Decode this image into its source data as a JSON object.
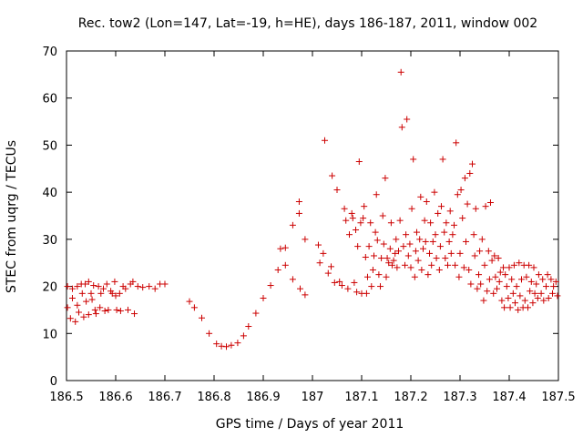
{
  "chart_data": {
    "type": "scatter",
    "title": "Rec. tow2 (Lon=147, Lat=-19, h=HE), days 186-187, 2011, window 002",
    "xlabel": "GPS time / Days of year 2011",
    "ylabel": "STEC from uqrg / TECUs",
    "xlim": [
      186.5,
      187.5
    ],
    "ylim": [
      0,
      70
    ],
    "xticks": [
      "186.5",
      "186.6",
      "186.7",
      "186.8",
      "186.9",
      "187",
      "187.1",
      "187.2",
      "187.3",
      "187.4",
      "187.5"
    ],
    "yticks": [
      "0",
      "10",
      "20",
      "30",
      "40",
      "50",
      "60",
      "70"
    ],
    "grid": false,
    "legend": "none",
    "marker": "+",
    "color": "#cc0000",
    "points": [
      [
        186.502,
        20.0
      ],
      [
        186.502,
        15.5
      ],
      [
        186.508,
        13.2
      ],
      [
        186.512,
        19.5
      ],
      [
        186.512,
        17.5
      ],
      [
        186.518,
        12.5
      ],
      [
        186.522,
        20.0
      ],
      [
        186.522,
        16.0
      ],
      [
        186.525,
        14.5
      ],
      [
        186.53,
        20.5
      ],
      [
        186.532,
        18.5
      ],
      [
        186.535,
        13.5
      ],
      [
        186.538,
        20.5
      ],
      [
        186.54,
        16.8
      ],
      [
        186.545,
        21.0
      ],
      [
        186.545,
        14.0
      ],
      [
        186.55,
        18.5
      ],
      [
        186.552,
        17.2
      ],
      [
        186.555,
        20.2
      ],
      [
        186.558,
        15.0
      ],
      [
        186.56,
        14.2
      ],
      [
        186.565,
        20.0
      ],
      [
        186.568,
        15.5
      ],
      [
        186.57,
        18.5
      ],
      [
        186.575,
        19.5
      ],
      [
        186.578,
        14.8
      ],
      [
        186.582,
        20.5
      ],
      [
        186.585,
        15.0
      ],
      [
        186.59,
        19.0
      ],
      [
        186.593,
        18.5
      ],
      [
        186.598,
        21.0
      ],
      [
        186.6,
        18.0
      ],
      [
        186.602,
        15.0
      ],
      [
        186.608,
        18.5
      ],
      [
        186.61,
        14.8
      ],
      [
        186.615,
        20.0
      ],
      [
        186.62,
        19.5
      ],
      [
        186.625,
        15.0
      ],
      [
        186.63,
        20.5
      ],
      [
        186.635,
        21.0
      ],
      [
        186.638,
        14.2
      ],
      [
        186.645,
        20.0
      ],
      [
        186.655,
        19.8
      ],
      [
        186.668,
        20.0
      ],
      [
        186.68,
        19.5
      ],
      [
        186.69,
        20.5
      ],
      [
        186.7,
        20.5
      ],
      [
        186.75,
        16.8
      ],
      [
        186.76,
        15.5
      ],
      [
        186.775,
        13.3
      ],
      [
        186.79,
        10.0
      ],
      [
        186.805,
        7.8
      ],
      [
        186.815,
        7.3
      ],
      [
        186.825,
        7.2
      ],
      [
        186.835,
        7.5
      ],
      [
        186.848,
        8.0
      ],
      [
        186.86,
        9.5
      ],
      [
        186.87,
        11.5
      ],
      [
        186.885,
        14.3
      ],
      [
        186.9,
        17.5
      ],
      [
        186.915,
        20.2
      ],
      [
        186.93,
        23.5
      ],
      [
        186.935,
        28.0
      ],
      [
        186.945,
        28.2
      ],
      [
        186.945,
        24.5
      ],
      [
        186.96,
        21.5
      ],
      [
        186.96,
        33.0
      ],
      [
        186.973,
        35.5
      ],
      [
        186.973,
        38.0
      ],
      [
        186.975,
        19.5
      ],
      [
        186.985,
        18.2
      ],
      [
        186.985,
        30.0
      ],
      [
        187.012,
        28.8
      ],
      [
        187.015,
        25.0
      ],
      [
        187.022,
        27.0
      ],
      [
        187.025,
        51.0
      ],
      [
        187.032,
        22.8
      ],
      [
        187.038,
        24.2
      ],
      [
        187.04,
        43.5
      ],
      [
        187.045,
        20.8
      ],
      [
        187.05,
        40.5
      ],
      [
        187.055,
        21.0
      ],
      [
        187.06,
        20.2
      ],
      [
        187.065,
        36.5
      ],
      [
        187.068,
        34.0
      ],
      [
        187.072,
        19.5
      ],
      [
        187.075,
        31.0
      ],
      [
        187.08,
        35.5
      ],
      [
        187.082,
        34.5
      ],
      [
        187.085,
        20.8
      ],
      [
        187.088,
        32.0
      ],
      [
        187.09,
        18.8
      ],
      [
        187.092,
        28.5
      ],
      [
        187.095,
        46.5
      ],
      [
        187.098,
        33.5
      ],
      [
        187.1,
        18.5
      ],
      [
        187.103,
        34.5
      ],
      [
        187.105,
        37.0
      ],
      [
        187.108,
        26.2
      ],
      [
        187.11,
        18.5
      ],
      [
        187.112,
        22.0
      ],
      [
        187.115,
        28.5
      ],
      [
        187.118,
        33.5
      ],
      [
        187.12,
        20.0
      ],
      [
        187.123,
        23.5
      ],
      [
        187.125,
        26.5
      ],
      [
        187.128,
        31.5
      ],
      [
        187.13,
        39.5
      ],
      [
        187.132,
        29.8
      ],
      [
        187.135,
        22.5
      ],
      [
        187.138,
        20.0
      ],
      [
        187.14,
        26.0
      ],
      [
        187.143,
        35.0
      ],
      [
        187.145,
        29.0
      ],
      [
        187.148,
        43.0
      ],
      [
        187.15,
        22.0
      ],
      [
        187.152,
        26.0
      ],
      [
        187.155,
        25.0
      ],
      [
        187.158,
        28.0
      ],
      [
        187.16,
        33.5
      ],
      [
        187.162,
        24.5
      ],
      [
        187.165,
        25.5
      ],
      [
        187.168,
        27.0
      ],
      [
        187.17,
        30.0
      ],
      [
        187.172,
        24.0
      ],
      [
        187.175,
        27.5
      ],
      [
        187.178,
        34.0
      ],
      [
        187.18,
        65.5
      ],
      [
        187.182,
        53.8
      ],
      [
        187.185,
        28.5
      ],
      [
        187.188,
        24.5
      ],
      [
        187.19,
        31.0
      ],
      [
        187.192,
        55.5
      ],
      [
        187.195,
        26.5
      ],
      [
        187.198,
        29.0
      ],
      [
        187.2,
        24.0
      ],
      [
        187.202,
        36.5
      ],
      [
        187.205,
        47.0
      ],
      [
        187.208,
        22.0
      ],
      [
        187.21,
        27.5
      ],
      [
        187.212,
        31.5
      ],
      [
        187.215,
        25.5
      ],
      [
        187.218,
        30.0
      ],
      [
        187.22,
        39.0
      ],
      [
        187.222,
        23.5
      ],
      [
        187.225,
        28.0
      ],
      [
        187.228,
        34.0
      ],
      [
        187.23,
        29.5
      ],
      [
        187.232,
        38.0
      ],
      [
        187.235,
        22.5
      ],
      [
        187.238,
        27.0
      ],
      [
        187.24,
        33.5
      ],
      [
        187.242,
        24.5
      ],
      [
        187.245,
        29.5
      ],
      [
        187.248,
        40.0
      ],
      [
        187.25,
        31.0
      ],
      [
        187.252,
        26.0
      ],
      [
        187.255,
        35.5
      ],
      [
        187.258,
        23.5
      ],
      [
        187.26,
        28.5
      ],
      [
        187.262,
        37.0
      ],
      [
        187.265,
        47.0
      ],
      [
        187.268,
        31.5
      ],
      [
        187.27,
        26.0
      ],
      [
        187.272,
        33.5
      ],
      [
        187.275,
        24.5
      ],
      [
        187.278,
        29.5
      ],
      [
        187.28,
        36.0
      ],
      [
        187.282,
        27.0
      ],
      [
        187.285,
        31.0
      ],
      [
        187.288,
        33.0
      ],
      [
        187.29,
        24.5
      ],
      [
        187.292,
        50.5
      ],
      [
        187.295,
        39.5
      ],
      [
        187.298,
        22.0
      ],
      [
        187.3,
        27.0
      ],
      [
        187.302,
        40.5
      ],
      [
        187.305,
        34.5
      ],
      [
        187.308,
        24.0
      ],
      [
        187.31,
        43.0
      ],
      [
        187.312,
        29.5
      ],
      [
        187.315,
        37.5
      ],
      [
        187.318,
        23.5
      ],
      [
        187.32,
        44.0
      ],
      [
        187.322,
        20.5
      ],
      [
        187.325,
        46.0
      ],
      [
        187.328,
        31.0
      ],
      [
        187.33,
        26.5
      ],
      [
        187.332,
        36.5
      ],
      [
        187.335,
        19.5
      ],
      [
        187.338,
        22.5
      ],
      [
        187.34,
        27.5
      ],
      [
        187.342,
        20.5
      ],
      [
        187.345,
        30.0
      ],
      [
        187.348,
        17.0
      ],
      [
        187.35,
        24.5
      ],
      [
        187.352,
        37.0
      ],
      [
        187.355,
        19.0
      ],
      [
        187.358,
        27.5
      ],
      [
        187.36,
        21.5
      ],
      [
        187.362,
        37.8
      ],
      [
        187.365,
        25.5
      ],
      [
        187.368,
        18.5
      ],
      [
        187.37,
        26.5
      ],
      [
        187.372,
        22.0
      ],
      [
        187.375,
        19.5
      ],
      [
        187.378,
        26.0
      ],
      [
        187.38,
        21.0
      ],
      [
        187.382,
        23.0
      ],
      [
        187.385,
        17.0
      ],
      [
        187.388,
        24.0
      ],
      [
        187.39,
        15.5
      ],
      [
        187.392,
        22.5
      ],
      [
        187.395,
        20.0
      ],
      [
        187.398,
        17.5
      ],
      [
        187.4,
        24.0
      ],
      [
        187.402,
        15.5
      ],
      [
        187.405,
        21.5
      ],
      [
        187.408,
        18.5
      ],
      [
        187.41,
        24.5
      ],
      [
        187.412,
        16.5
      ],
      [
        187.415,
        20.0
      ],
      [
        187.418,
        15.0
      ],
      [
        187.42,
        25.0
      ],
      [
        187.422,
        18.0
      ],
      [
        187.425,
        21.5
      ],
      [
        187.428,
        15.5
      ],
      [
        187.43,
        24.5
      ],
      [
        187.432,
        17.0
      ],
      [
        187.435,
        22.0
      ],
      [
        187.438,
        15.5
      ],
      [
        187.44,
        24.5
      ],
      [
        187.442,
        19.0
      ],
      [
        187.445,
        21.0
      ],
      [
        187.448,
        16.5
      ],
      [
        187.45,
        24.0
      ],
      [
        187.452,
        18.5
      ],
      [
        187.455,
        20.5
      ],
      [
        187.458,
        17.5
      ],
      [
        187.46,
        22.5
      ],
      [
        187.465,
        18.5
      ],
      [
        187.468,
        21.5
      ],
      [
        187.47,
        17.0
      ],
      [
        187.475,
        20.0
      ],
      [
        187.478,
        22.5
      ],
      [
        187.48,
        17.5
      ],
      [
        187.485,
        21.5
      ],
      [
        187.488,
        18.5
      ],
      [
        187.49,
        20.0
      ],
      [
        187.495,
        21.0
      ],
      [
        187.498,
        18.0
      ]
    ]
  }
}
